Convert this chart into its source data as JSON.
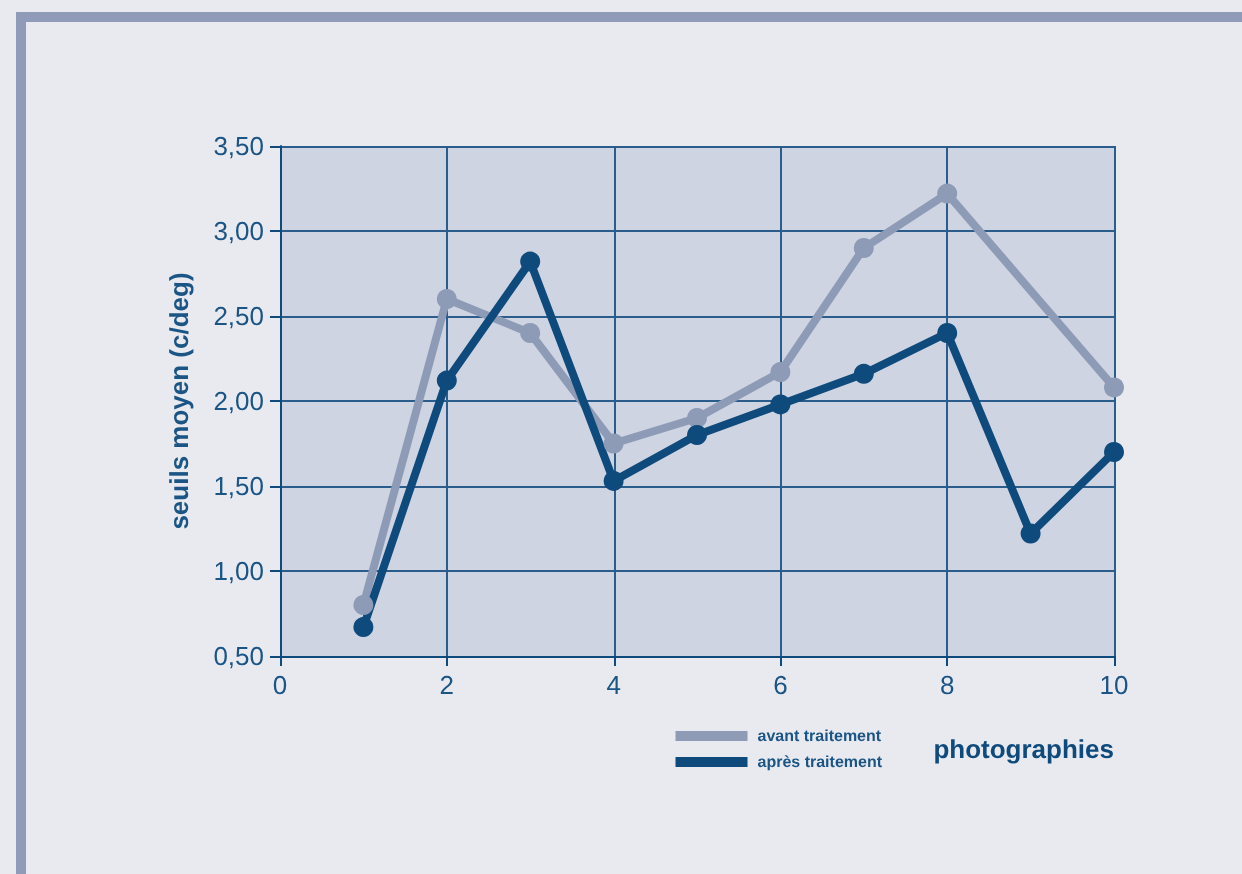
{
  "chart_data": {
    "type": "line",
    "xlabel": "photographies",
    "ylabel": "seuils moyen (c/deg)",
    "series": [
      {
        "name": "avant traitement",
        "color": "#8e9bb6",
        "x": [
          1,
          2,
          3,
          4,
          5,
          6,
          7,
          8,
          10
        ],
        "values": [
          0.8,
          2.6,
          2.4,
          1.75,
          1.9,
          2.17,
          2.9,
          3.22,
          2.08
        ]
      },
      {
        "name": "après traitement",
        "color": "#0e4a7b",
        "x": [
          1,
          2,
          3,
          4,
          5,
          6,
          7,
          8,
          9,
          10
        ],
        "values": [
          0.67,
          2.12,
          2.82,
          1.53,
          1.8,
          1.98,
          2.16,
          2.4,
          1.22,
          1.7
        ]
      }
    ],
    "xlim": [
      0,
      10
    ],
    "xticks": [
      0,
      2,
      4,
      6,
      8,
      10
    ],
    "ylim": [
      0.5,
      3.5
    ],
    "yticks": [
      {
        "value": 0.5,
        "label": "0,50"
      },
      {
        "value": 1,
        "label": "1,00"
      },
      {
        "value": 1.5,
        "label": "1,50"
      },
      {
        "value": 2,
        "label": "2,00"
      },
      {
        "value": 2.5,
        "label": "2,50"
      },
      {
        "value": 3,
        "label": "3,00"
      },
      {
        "value": 3.5,
        "label": "3,50"
      }
    ],
    "grid": true,
    "legend": "bottom right",
    "marker": "circle",
    "line_style": "solid"
  }
}
